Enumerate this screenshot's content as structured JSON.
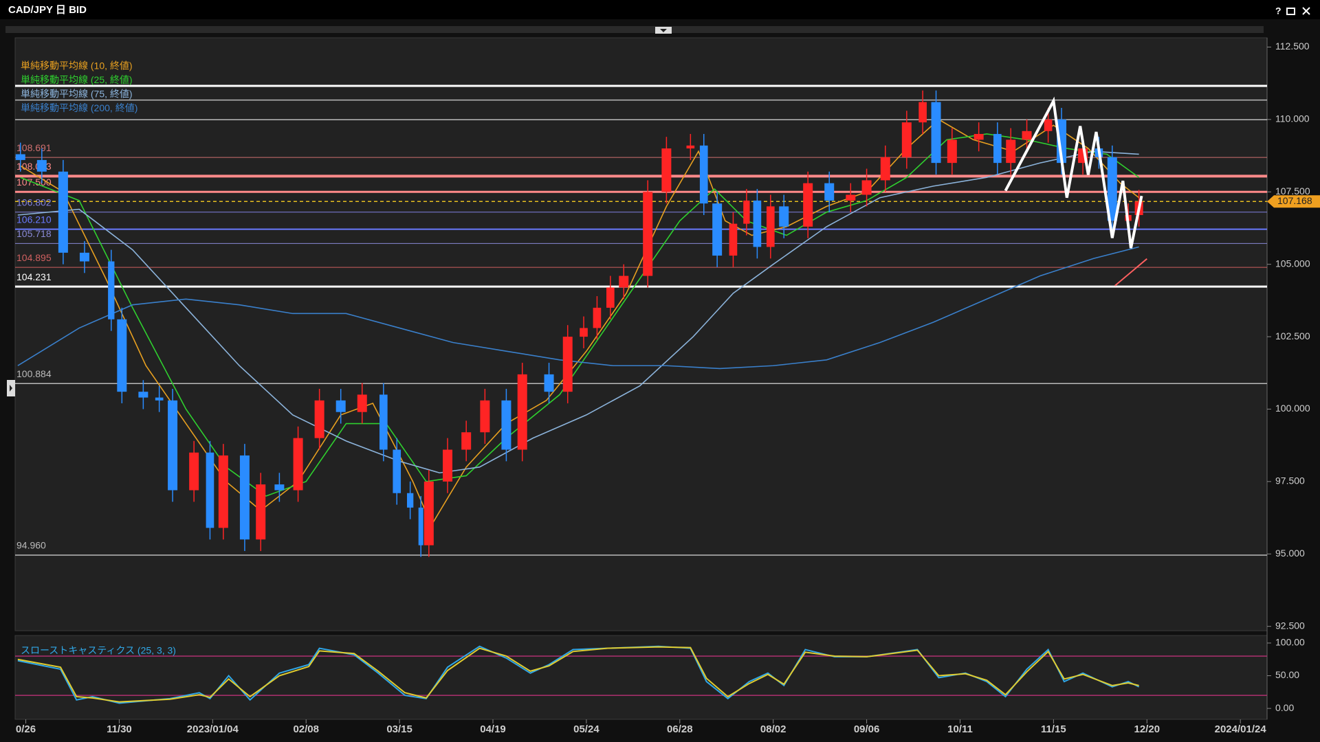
{
  "chart_data": [
    {
      "type": "candlestick",
      "title": "CAD/JPY 日 BID",
      "help": "?",
      "up_color": "#ff2424",
      "down_color": "#2a8cff",
      "candles": {
        "x": [
          -2,
          6,
          14,
          22,
          32,
          36,
          44,
          50,
          55,
          63,
          69,
          74,
          82,
          88,
          95,
          102,
          110,
          118,
          126,
          134,
          139,
          144,
          148,
          151,
          158,
          165,
          172,
          180,
          186,
          196,
          203,
          209,
          214,
          219,
          224,
          233,
          240,
          249,
          254,
          259,
          265,
          270,
          274,
          279,
          284,
          293,
          301,
          309,
          315,
          322,
          330,
          336,
          341,
          347,
          357,
          364,
          369,
          375,
          383,
          388,
          396,
          402,
          407,
          413,
          417
        ],
        "open": [
          108.8,
          108.6,
          108.2,
          105.4,
          105.1,
          103.1,
          100.6,
          100.4,
          100.3,
          97.2,
          98.5,
          95.9,
          98.4,
          95.5,
          97.4,
          97.2,
          99.0,
          100.3,
          99.9,
          100.5,
          98.6,
          97.1,
          96.6,
          95.3,
          97.5,
          98.6,
          99.2,
          100.3,
          98.6,
          101.2,
          100.6,
          102.5,
          102.8,
          103.5,
          104.2,
          104.6,
          107.5,
          109.0,
          109.1,
          107.1,
          105.3,
          106.4,
          107.2,
          105.6,
          107.0,
          106.3,
          107.8,
          107.2,
          107.4,
          107.9,
          108.7,
          109.9,
          110.6,
          108.5,
          109.3,
          109.5,
          108.5,
          109.3,
          109.6,
          110.0,
          108.5,
          109.0,
          108.7,
          106.5,
          106.7
        ],
        "high": [
          109.2,
          109.0,
          108.6,
          105.8,
          105.5,
          103.5,
          101.0,
          100.8,
          100.7,
          98.9,
          98.9,
          98.8,
          98.8,
          97.8,
          97.8,
          99.4,
          100.7,
          100.7,
          100.9,
          100.9,
          99.0,
          97.5,
          97.0,
          97.9,
          99.0,
          99.6,
          100.7,
          100.7,
          101.6,
          101.6,
          102.9,
          103.2,
          103.9,
          104.6,
          105.0,
          107.9,
          109.4,
          109.5,
          109.5,
          107.5,
          106.8,
          107.6,
          107.6,
          107.4,
          107.4,
          108.2,
          108.2,
          107.8,
          108.3,
          109.1,
          110.3,
          111.0,
          111.0,
          109.7,
          109.9,
          109.9,
          109.7,
          110.0,
          110.4,
          110.4,
          109.4,
          109.4,
          109.1,
          107.1,
          107.57
        ],
        "low": [
          108.2,
          107.8,
          105.0,
          104.7,
          102.7,
          100.2,
          100.0,
          99.9,
          96.8,
          96.8,
          95.5,
          95.5,
          95.1,
          95.1,
          96.8,
          96.8,
          98.6,
          99.5,
          99.5,
          98.2,
          96.7,
          96.2,
          94.9,
          94.9,
          97.1,
          98.2,
          98.8,
          98.2,
          98.2,
          100.2,
          100.2,
          102.1,
          102.4,
          103.1,
          103.8,
          104.2,
          107.1,
          108.6,
          106.7,
          104.9,
          104.9,
          106.0,
          105.2,
          105.2,
          105.9,
          105.9,
          106.8,
          106.8,
          107.0,
          107.5,
          108.3,
          109.5,
          108.1,
          108.1,
          108.9,
          108.1,
          108.1,
          108.9,
          109.2,
          108.1,
          108.1,
          108.3,
          106.1,
          106.1,
          106.3
        ],
        "close": [
          108.6,
          108.2,
          105.4,
          105.1,
          103.1,
          100.6,
          100.4,
          100.3,
          97.2,
          98.5,
          95.9,
          98.4,
          95.5,
          97.4,
          97.2,
          99.0,
          100.3,
          99.9,
          100.5,
          98.6,
          97.1,
          96.6,
          95.3,
          97.5,
          98.6,
          99.2,
          100.3,
          98.6,
          101.2,
          100.6,
          102.5,
          102.8,
          103.5,
          104.2,
          104.6,
          107.5,
          109.0,
          109.1,
          107.1,
          105.3,
          106.4,
          107.2,
          105.6,
          107.0,
          106.3,
          107.8,
          107.2,
          107.4,
          107.9,
          108.7,
          109.9,
          110.6,
          108.5,
          109.3,
          109.5,
          108.5,
          109.3,
          109.6,
          110.0,
          108.5,
          109.0,
          108.7,
          106.5,
          106.7,
          107.17
        ]
      },
      "series": [
        {
          "name": "単純移動平均線 (10, 終値)",
          "color": "#e8a020",
          "x": [
            -2,
            14,
            30,
            45,
            60,
            75,
            88,
            102,
            118,
            130,
            145,
            152,
            165,
            180,
            195,
            210,
            225,
            240,
            252,
            262,
            272,
            285,
            300,
            315,
            330,
            342,
            355,
            370,
            385,
            398,
            410,
            417
          ],
          "values": [
            108.4,
            107.5,
            104.5,
            101.5,
            99.5,
            97.5,
            96.5,
            97.5,
            99.8,
            100.2,
            97.5,
            96.0,
            98.0,
            99.5,
            100.3,
            102.0,
            104.0,
            107.0,
            108.9,
            106.5,
            106.0,
            106.3,
            107.0,
            107.5,
            109.0,
            110.0,
            109.3,
            108.9,
            109.8,
            109.0,
            107.8,
            107.3
          ]
        },
        {
          "name": "単純移動平均線 (25, 終値)",
          "color": "#2fd02f",
          "x": [
            -2,
            20,
            40,
            60,
            75,
            90,
            105,
            120,
            135,
            150,
            165,
            180,
            200,
            215,
            230,
            245,
            258,
            270,
            285,
            300,
            315,
            330,
            345,
            360,
            375,
            390,
            405,
            417
          ],
          "values": [
            108.0,
            107.2,
            103.5,
            100.0,
            98.0,
            97.0,
            97.5,
            99.5,
            99.5,
            97.5,
            97.7,
            99.0,
            100.5,
            102.5,
            104.5,
            106.5,
            107.6,
            106.5,
            106.0,
            106.8,
            107.2,
            108.0,
            109.3,
            109.5,
            109.3,
            109.0,
            108.8,
            108.0
          ]
        },
        {
          "name": "単純移動平均線 (75, 終値)",
          "color": "#8cb4dc",
          "x": [
            -3,
            20,
            40,
            60,
            80,
            100,
            120,
            140,
            155,
            170,
            190,
            210,
            230,
            250,
            265,
            280,
            300,
            320,
            340,
            360,
            380,
            400,
            417
          ],
          "values": [
            106.7,
            106.9,
            105.5,
            103.5,
            101.5,
            99.8,
            98.9,
            98.2,
            97.8,
            98.0,
            99.0,
            99.8,
            100.8,
            102.5,
            104.0,
            105.0,
            106.3,
            107.3,
            107.7,
            108.0,
            108.5,
            108.9,
            108.8
          ]
        },
        {
          "name": "単純移動平均線 (200, 終値)",
          "color": "#3a80cc",
          "x": [
            -3,
            20,
            40,
            60,
            80,
            100,
            120,
            140,
            160,
            180,
            200,
            220,
            240,
            260,
            280,
            300,
            320,
            340,
            360,
            380,
            400,
            417
          ],
          "values": [
            101.5,
            102.8,
            103.6,
            103.8,
            103.6,
            103.3,
            103.3,
            102.8,
            102.3,
            102.0,
            101.7,
            101.5,
            101.5,
            101.4,
            101.5,
            101.7,
            102.3,
            103.0,
            103.8,
            104.6,
            105.2,
            105.6
          ]
        }
      ],
      "levels": [
        {
          "value": 111.16,
          "color": "#ffffff",
          "width": 3
        },
        {
          "value": 110.67,
          "color": "#bbbbbb",
          "width": 1.5
        },
        {
          "value": 109.99,
          "color": "#bbbbbb",
          "width": 1.5
        },
        {
          "value": 108.691,
          "color": "#d07070",
          "width": 1
        },
        {
          "value": 108.043,
          "color": "#ff8a8a",
          "width": 4
        },
        {
          "value": 107.5,
          "label": "107.500",
          "color": "#ff8a8a",
          "width": 3
        },
        {
          "value": 106.802,
          "color": "#8080e0",
          "width": 1
        },
        {
          "value": 106.21,
          "label": "106.210",
          "color": "#6a7aff",
          "width": 2
        },
        {
          "value": 105.718,
          "color": "#8a8ad8",
          "width": 1
        },
        {
          "value": 104.895,
          "color": "#d06060",
          "width": 1
        },
        {
          "value": 104.231,
          "color": "#ffffff",
          "width": 3
        },
        {
          "value": 100.884,
          "color": "#bbbbbb",
          "width": 1.5
        },
        {
          "value": 94.96,
          "label": "94.960",
          "color": "#bbbbbb",
          "width": 1.5
        }
      ],
      "current": {
        "value": 107.168,
        "label": "107.168",
        "color": "#f0a020"
      },
      "drawings": [
        {
          "color": "#ffffff",
          "x": [
            367,
            385,
            390,
            395,
            398,
            401,
            407,
            411,
            414,
            418
          ],
          "y": [
            107.54,
            110.64,
            107.3,
            109.77,
            108.09,
            109.57,
            105.91,
            107.88,
            105.56,
            107.36
          ]
        },
        {
          "color": "#ff6060",
          "x": [
            408,
            420
          ],
          "y": [
            104.26,
            105.19
          ]
        }
      ],
      "xlim": [
        -4,
        465
      ],
      "xticks": [
        {
          "value": 0,
          "label": "0/26"
        },
        {
          "value": 35,
          "label": "11/30"
        },
        {
          "value": 70,
          "label": "2023/01/04"
        },
        {
          "value": 105,
          "label": "02/08"
        },
        {
          "value": 140,
          "label": "03/15"
        },
        {
          "value": 175,
          "label": "04/19"
        },
        {
          "value": 210,
          "label": "05/24"
        },
        {
          "value": 245,
          "label": "06/28"
        },
        {
          "value": 280,
          "label": "08/02"
        },
        {
          "value": 315,
          "label": "09/06"
        },
        {
          "value": 350,
          "label": "10/11"
        },
        {
          "value": 385,
          "label": "11/15"
        },
        {
          "value": 420,
          "label": "12/20"
        },
        {
          "value": 455,
          "label": "2024/01/24"
        }
      ],
      "ylim": [
        92.35,
        112.82
      ],
      "yticks": [
        {
          "value": 92.5,
          "label": "92.500"
        },
        {
          "value": 95,
          "label": "95.000"
        },
        {
          "value": 97.5,
          "label": "97.500"
        },
        {
          "value": 100,
          "label": "100.000"
        },
        {
          "value": 102.5,
          "label": "102.500"
        },
        {
          "value": 105,
          "label": "105.000"
        },
        {
          "value": 107.5,
          "label": "107.500"
        },
        {
          "value": 110,
          "label": "110.000"
        },
        {
          "value": 112.5,
          "label": "112.500"
        }
      ]
    },
    {
      "type": "line",
      "title": "スローストキャスティクス (25, 3, 3)",
      "x": [
        -3,
        13,
        19,
        25,
        35,
        54,
        65,
        69,
        76,
        84,
        95,
        106,
        110,
        123,
        132,
        142,
        150,
        158,
        170,
        180,
        189,
        196,
        205,
        218,
        237,
        249,
        255,
        263,
        271,
        278,
        284,
        292,
        303,
        315,
        334,
        342,
        352,
        360,
        367,
        375,
        383,
        389,
        396,
        407,
        413,
        417
      ],
      "series": [
        {
          "color": "#30a8e8",
          "values": [
            73,
            60,
            13,
            18,
            8,
            15,
            24,
            15,
            50,
            13,
            54,
            67,
            92,
            82,
            54,
            20,
            15,
            63,
            95,
            77,
            54,
            67,
            90,
            92,
            95,
            92,
            41,
            15,
            41,
            54,
            35,
            90,
            79,
            79,
            90,
            47,
            54,
            41,
            18,
            60,
            90,
            41,
            54,
            33,
            41,
            33
          ]
        },
        {
          "color": "#e0cc30",
          "values": [
            75,
            63,
            18,
            16,
            10,
            14,
            21,
            17,
            45,
            18,
            50,
            64,
            88,
            84,
            57,
            24,
            16,
            58,
            92,
            80,
            57,
            65,
            87,
            92,
            94,
            93,
            46,
            18,
            38,
            52,
            37,
            86,
            80,
            79,
            89,
            50,
            53,
            43,
            21,
            56,
            87,
            45,
            52,
            35,
            39,
            35
          ]
        }
      ],
      "levels": [
        {
          "value": 80,
          "color": "#b03070"
        },
        {
          "value": 20,
          "color": "#b03070"
        }
      ],
      "ylim": [
        -16.7,
        111.5
      ],
      "yticks": [
        {
          "value": 100,
          "label": "100.00"
        },
        {
          "value": 50,
          "label": "50.00"
        },
        {
          "value": 0,
          "label": "0.00"
        }
      ]
    }
  ]
}
